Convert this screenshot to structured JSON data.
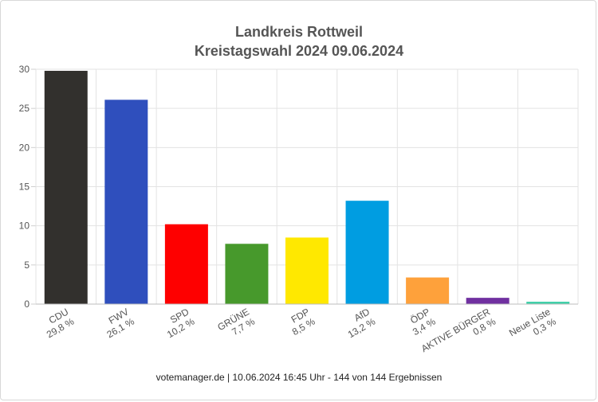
{
  "chart_data": {
    "type": "bar",
    "title": "Landkreis Rottweil",
    "subtitle": "Kreistagswahl 2024 09.06.2024",
    "categories": [
      "CDU",
      "FWV",
      "SPD",
      "GRÜNE",
      "FDP",
      "AfD",
      "ÖDP",
      "AKTIVE BÜRGER",
      "Neue Liste"
    ],
    "value_labels": [
      "29,8 %",
      "26,1 %",
      "10,2 %",
      "7,7 %",
      "8,5 %",
      "13,2 %",
      "3,4 %",
      "0,8 %",
      "0,3 %"
    ],
    "values": [
      29.8,
      26.1,
      10.2,
      7.7,
      8.5,
      13.2,
      3.4,
      0.8,
      0.3
    ],
    "colors": [
      "#32302d",
      "#2f4fbd",
      "#fe0000",
      "#47992c",
      "#ffe800",
      "#009de1",
      "#fea13b",
      "#7030a0",
      "#3ecfa8"
    ],
    "ylim": [
      0,
      30
    ],
    "yticks": [
      0,
      5,
      10,
      15,
      20,
      25,
      30
    ],
    "grid": true,
    "xlabel": "",
    "ylabel": ""
  },
  "footer": "votemanager.de | 10.06.2024 16:45 Uhr - 144 von 144 Ergebnissen"
}
